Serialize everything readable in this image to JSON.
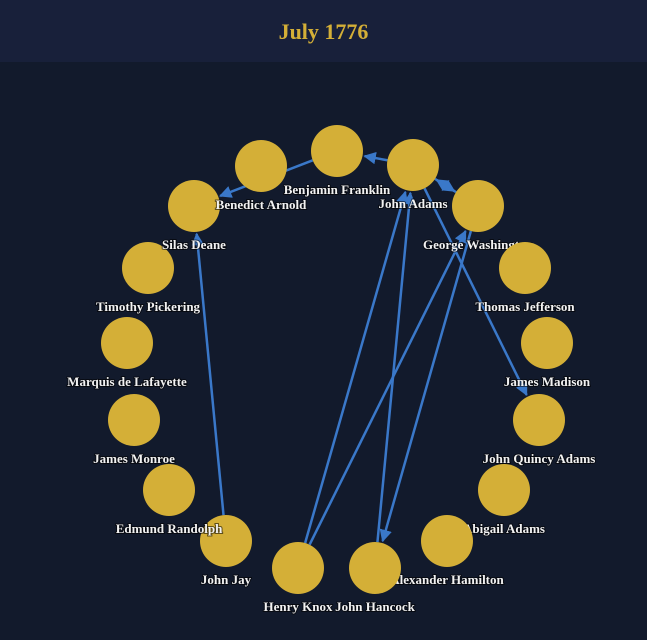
{
  "header": {
    "title": "July 1776"
  },
  "nodes": [
    {
      "label": "Benjamin Franklin"
    },
    {
      "label": "John Adams"
    },
    {
      "label": "George Washington"
    },
    {
      "label": "Thomas Jefferson"
    },
    {
      "label": "James Madison"
    },
    {
      "label": "John Quincy Adams"
    },
    {
      "label": "Abigail Adams"
    },
    {
      "label": "Alexander Hamilton"
    },
    {
      "label": "John Hancock"
    },
    {
      "label": "Henry Knox"
    },
    {
      "label": "John Jay"
    },
    {
      "label": "Edmund Randolph"
    },
    {
      "label": "James Monroe"
    },
    {
      "label": "Marquis de Lafayette"
    },
    {
      "label": "Timothy Pickering"
    },
    {
      "label": "Silas Deane"
    },
    {
      "label": "Benedict Arnold"
    }
  ]
}
